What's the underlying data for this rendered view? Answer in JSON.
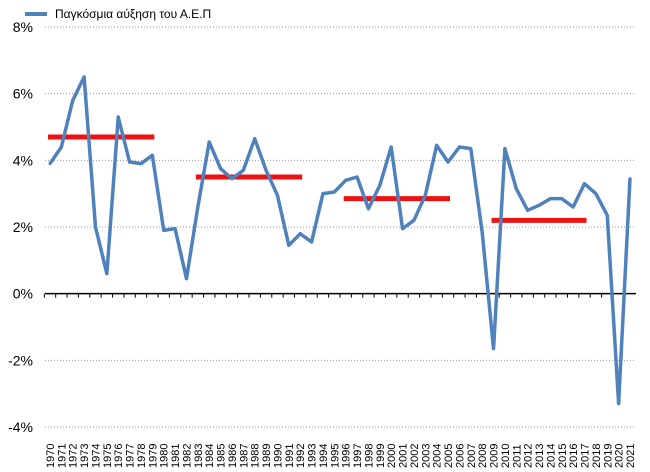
{
  "chart_data": {
    "type": "line",
    "title": "",
    "xlabel": "",
    "ylabel": "",
    "ylim": [
      -4,
      8
    ],
    "y_ticks": [
      "8%",
      "6%",
      "4%",
      "2%",
      "0%",
      "-2%",
      "-4%"
    ],
    "y_tick_values": [
      8,
      6,
      4,
      2,
      0,
      -2,
      -4
    ],
    "grid": "horizontal dotted",
    "legend": "top-left",
    "categories": [
      "1970",
      "1971",
      "1972",
      "1973",
      "1974",
      "1975",
      "1976",
      "1977",
      "1978",
      "1979",
      "1980",
      "1981",
      "1982",
      "1983",
      "1984",
      "1985",
      "1986",
      "1987",
      "1988",
      "1989",
      "1990",
      "1991",
      "1992",
      "1993",
      "1994",
      "1995",
      "1996",
      "1997",
      "1998",
      "1999",
      "2000",
      "2001",
      "2002",
      "2003",
      "2004",
      "2005",
      "2006",
      "2007",
      "2008",
      "2009",
      "2010",
      "2011",
      "2012",
      "2013",
      "2014",
      "2015",
      "2016",
      "2017",
      "2018",
      "2019",
      "2020",
      "2021"
    ],
    "series": [
      {
        "name": "Παγκόσμια αύξηση του Α.Ε.Π",
        "color": "#4F81BD",
        "values": [
          3.9,
          4.4,
          5.8,
          6.5,
          2.0,
          0.6,
          5.3,
          3.95,
          3.9,
          4.15,
          1.9,
          1.95,
          0.45,
          2.6,
          4.55,
          3.75,
          3.45,
          3.7,
          4.65,
          3.7,
          2.95,
          1.45,
          1.8,
          1.55,
          3.0,
          3.05,
          3.4,
          3.5,
          2.55,
          3.25,
          4.4,
          1.95,
          2.2,
          2.95,
          4.45,
          3.95,
          4.4,
          4.35,
          1.85,
          -1.65,
          4.35,
          3.15,
          2.5,
          2.65,
          2.85,
          2.85,
          2.6,
          3.3,
          3.0,
          2.35,
          -3.3,
          3.45
        ]
      }
    ],
    "averages": {
      "color": "#EE1111",
      "segments": [
        {
          "from": "1970",
          "to": "1979",
          "value": 4.7
        },
        {
          "from": "1983",
          "to": "1992",
          "value": 3.5
        },
        {
          "from": "1996",
          "to": "2005",
          "value": 2.85
        },
        {
          "from": "2009",
          "to": "2017",
          "value": 2.2
        }
      ]
    }
  }
}
